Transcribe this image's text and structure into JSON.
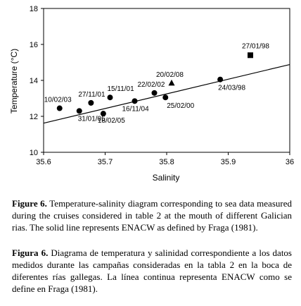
{
  "chart_data": {
    "type": "scatter",
    "xlabel": "Salinity",
    "ylabel": "Temperature (°C)",
    "xlim": [
      35.6,
      36.0
    ],
    "ylim": [
      10,
      18
    ],
    "x_ticks": [
      "35.6",
      "35.7",
      "35.8",
      "35.9",
      "36"
    ],
    "y_ticks": [
      "10",
      "12",
      "14",
      "16",
      "18"
    ],
    "grid": false,
    "legend": "none",
    "points": [
      {
        "label": "10/02/03",
        "x": 35.626,
        "y": 12.45,
        "marker": "circle"
      },
      {
        "label": "31/01/05",
        "x": 35.658,
        "y": 12.3,
        "marker": "circle"
      },
      {
        "label": "27/11/01",
        "x": 35.677,
        "y": 12.75,
        "marker": "circle"
      },
      {
        "label": "18/02/05",
        "x": 35.697,
        "y": 12.15,
        "marker": "circle"
      },
      {
        "label": "15/11/01",
        "x": 35.708,
        "y": 13.05,
        "marker": "circle"
      },
      {
        "label": "16/11/04",
        "x": 35.748,
        "y": 12.85,
        "marker": "circle"
      },
      {
        "label": "22/02/02",
        "x": 35.78,
        "y": 13.3,
        "marker": "circle"
      },
      {
        "label": "25/02/00",
        "x": 35.798,
        "y": 13.05,
        "marker": "circle"
      },
      {
        "label": "20/02/08",
        "x": 35.808,
        "y": 13.85,
        "marker": "triangle"
      },
      {
        "label": "24/03/98",
        "x": 35.887,
        "y": 14.05,
        "marker": "circle"
      },
      {
        "label": "27/01/98",
        "x": 35.936,
        "y": 15.4,
        "marker": "square"
      }
    ],
    "line": {
      "x": [
        35.6,
        36.0
      ],
      "y": [
        11.62,
        14.88
      ]
    }
  },
  "caption_en": {
    "label": "Figure 6.",
    "text": " Temperature-salinity diagram corresponding to sea data measured during the cruises considered in table 2 at the mouth of different Galician rias. The solid line represents ENACW as defined by Fraga (1981)."
  },
  "caption_es": {
    "label": "Figura 6.",
    "text": " Diagrama de temperatura y salinidad correspondiente a los datos medidos durante las campañas consideradas en la tabla 2 en la boca de diferentes rías gallegas. La línea continua representa ENACW como se define en Fraga (1981)."
  }
}
